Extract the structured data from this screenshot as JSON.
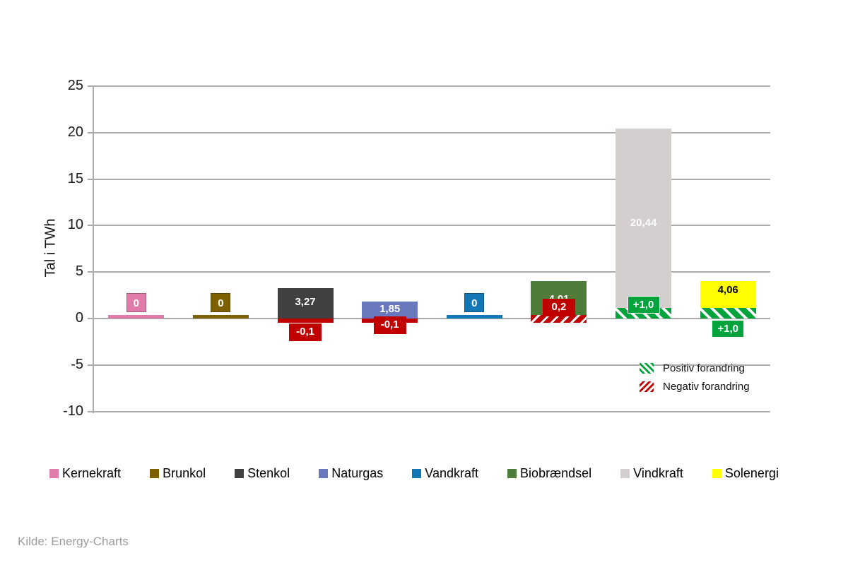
{
  "chart_data": {
    "type": "bar",
    "title": "",
    "ylabel": "Tal i TWh",
    "ylim": [
      -10,
      25
    ],
    "yticks": [
      25,
      20,
      15,
      10,
      5,
      0,
      -5,
      -10
    ],
    "grid": true,
    "legend_position": "bottom",
    "categories": [
      "Kernekraft",
      "Brunkol",
      "Stenkol",
      "Naturgas",
      "Vandkraft",
      "Biobrændsel",
      "Vindkraft",
      "Solenergi"
    ],
    "bars": [
      {
        "name": "Kernekraft",
        "value": 0,
        "label": "0",
        "color": "#E07CA9",
        "label_pos": "box-above",
        "label_color": "#ffffff"
      },
      {
        "name": "Brunkol",
        "value": 0,
        "label": "0",
        "color": "#7F6000",
        "label_pos": "box-above",
        "label_color": "#ffffff"
      },
      {
        "name": "Stenkol",
        "value": 3.27,
        "label": "3,27",
        "color": "#404040",
        "label_pos": "inside-center",
        "label_color": "#ffffff"
      },
      {
        "name": "Naturgas",
        "value": 1.85,
        "label": "1,85",
        "color": "#6A78BE",
        "label_pos": "inside-center",
        "label_color": "#ffffff"
      },
      {
        "name": "Vandkraft",
        "value": 0,
        "label": "0",
        "color": "#1377B5",
        "label_pos": "box-above",
        "label_color": "#ffffff"
      },
      {
        "name": "Biobrændsel",
        "value": 4.01,
        "label": "4,01",
        "color": "#4E7D3A",
        "label_pos": "inside-center",
        "label_color": "#ffffff"
      },
      {
        "name": "Vindkraft",
        "value": 20.44,
        "label": "20,44",
        "color": "#D4CFCE",
        "label_pos": "inside-center",
        "label_color": "#ffffff"
      },
      {
        "name": "Solenergi",
        "value": 4.06,
        "label": "4,06",
        "color": "#FFFF00",
        "label_pos": "inside-top",
        "label_color": "#000000"
      }
    ],
    "changes": [
      {
        "category": "Stenkol",
        "value": -0.1,
        "label": "-0,1",
        "kind": "negative",
        "strip": "solid",
        "label_pos": "below-strip"
      },
      {
        "category": "Naturgas",
        "value": -0.1,
        "label": "-0,1",
        "kind": "negative",
        "strip": "solid",
        "label_pos": "at-axis"
      },
      {
        "category": "Biobrændsel",
        "value": -0.2,
        "label": "0,2",
        "kind": "negative",
        "strip": "hatched",
        "label_pos": "above-axis"
      },
      {
        "category": "Vindkraft",
        "value": 1.0,
        "label": "+1,0",
        "kind": "positive",
        "strip": "hatched",
        "label_pos": "above-strip"
      },
      {
        "category": "Solenergi",
        "value": 1.0,
        "label": "+1,0",
        "kind": "positive",
        "strip": "hatched",
        "label_pos": "below-axis"
      }
    ],
    "change_legend": [
      {
        "label": "Positiv forandring",
        "kind": "positive"
      },
      {
        "label": "Negativ forandring",
        "kind": "negative"
      }
    ],
    "colors": {
      "positive": "#00A33C",
      "negative": "#C00000",
      "grid": "#ABABAB",
      "axis_text": "#1A1A1A",
      "source_text": "#9C9C9C"
    },
    "source": "Kilde: Energy-Charts"
  }
}
